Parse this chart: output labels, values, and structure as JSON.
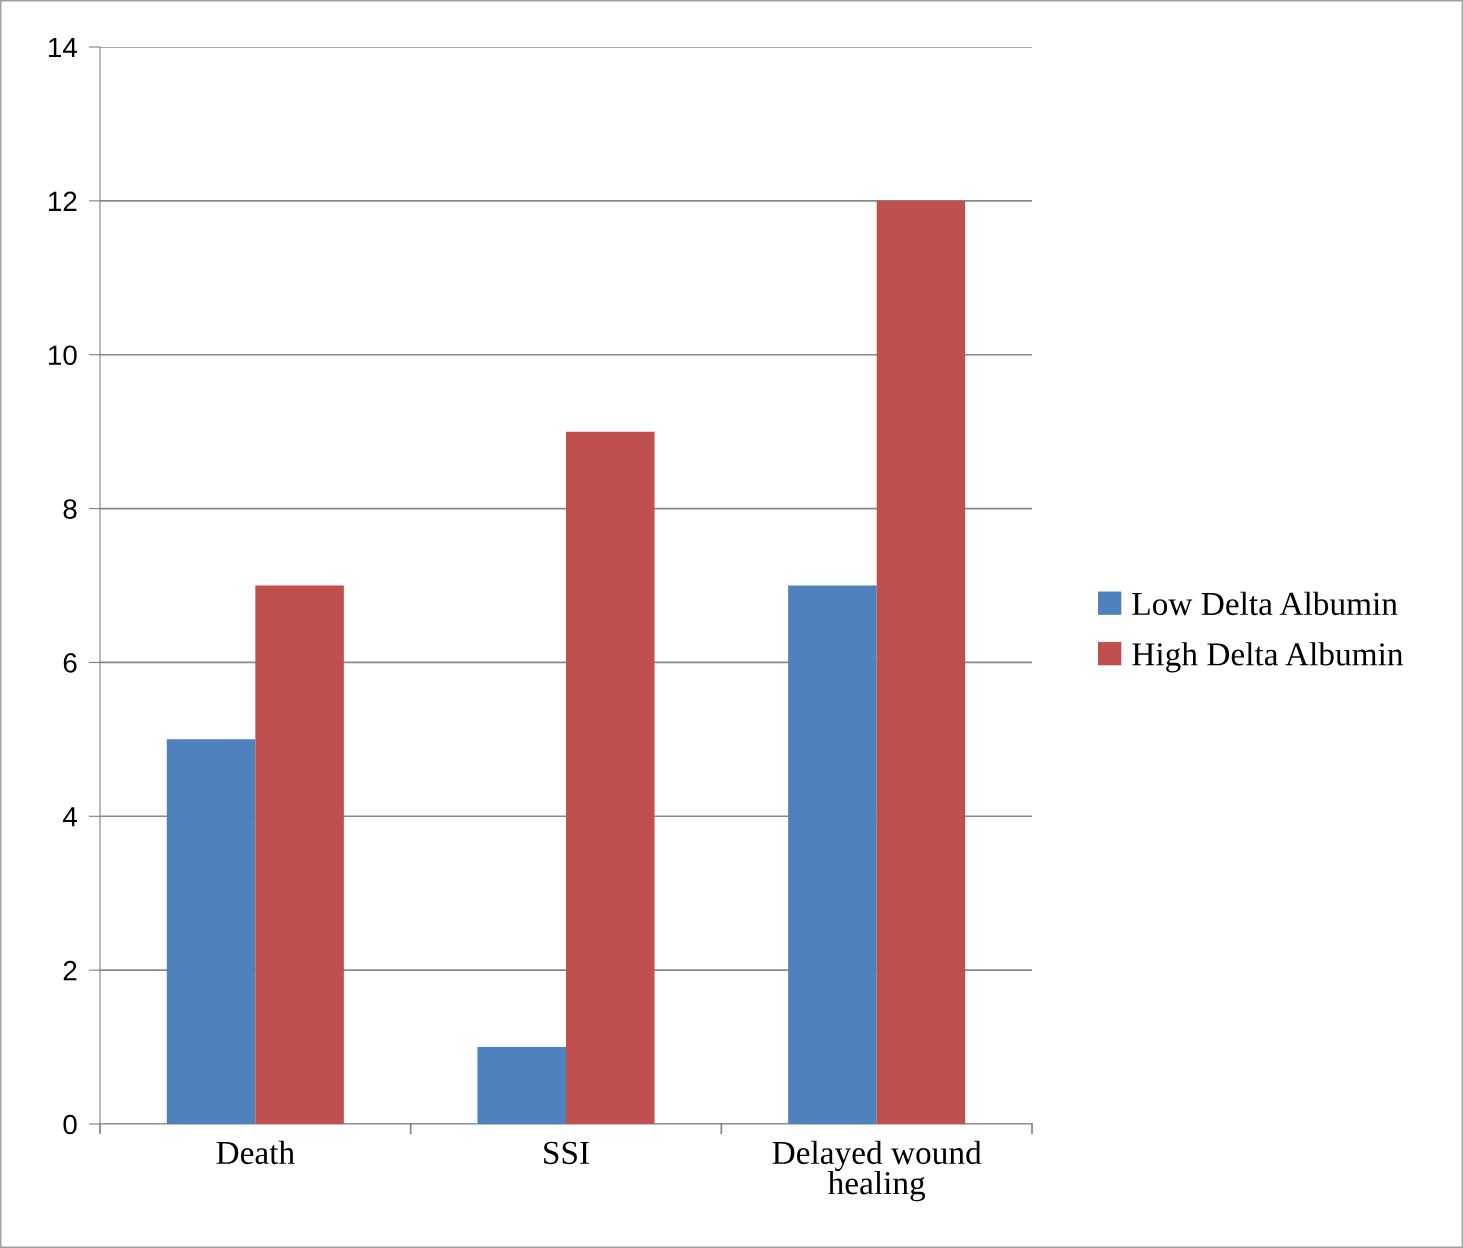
{
  "chart_data": {
    "type": "bar",
    "categories": [
      "Death",
      "SSI",
      "Delayed wound healing"
    ],
    "series": [
      {
        "name": "Low Delta Albumin",
        "color": "#4f81bd",
        "values": [
          5,
          1,
          7
        ]
      },
      {
        "name": "High Delta Albumin",
        "color": "#c0504d",
        "values": [
          7,
          9,
          12
        ]
      }
    ],
    "ylim": [
      0,
      14
    ],
    "yticks": [
      0,
      2,
      4,
      6,
      8,
      10,
      12,
      14
    ],
    "grid": "y",
    "legend": "right"
  }
}
